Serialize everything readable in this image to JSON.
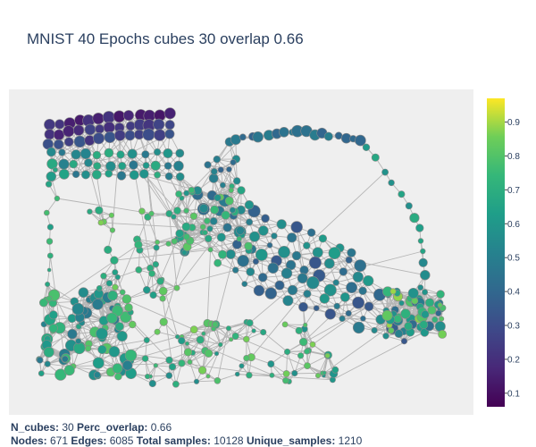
{
  "title": "MNIST 40 Epochs cubes 30 overlap 0.66",
  "colorscale": {
    "name": "viridis",
    "ticks": [
      "0.1",
      "0.2",
      "0.3",
      "0.4",
      "0.5",
      "0.6",
      "0.7",
      "0.8",
      "0.9"
    ],
    "range": [
      0.06,
      0.97
    ]
  },
  "stats": {
    "line1": [
      {
        "label": "N_cubes:",
        "value": "30"
      },
      {
        "label": "Perc_overlap:",
        "value": "0.66"
      }
    ],
    "line2": [
      {
        "label": "Nodes:",
        "value": "671"
      },
      {
        "label": "Edges:",
        "value": "6085"
      },
      {
        "label": "Total samples:",
        "value": "10128"
      },
      {
        "label": "Unique_samples:",
        "value": "1210"
      }
    ]
  },
  "colors": {
    "plot_background": "#efefef",
    "edge": "#b5b5b5",
    "node_outline": "#888888",
    "text": "#2a3f5f"
  }
}
